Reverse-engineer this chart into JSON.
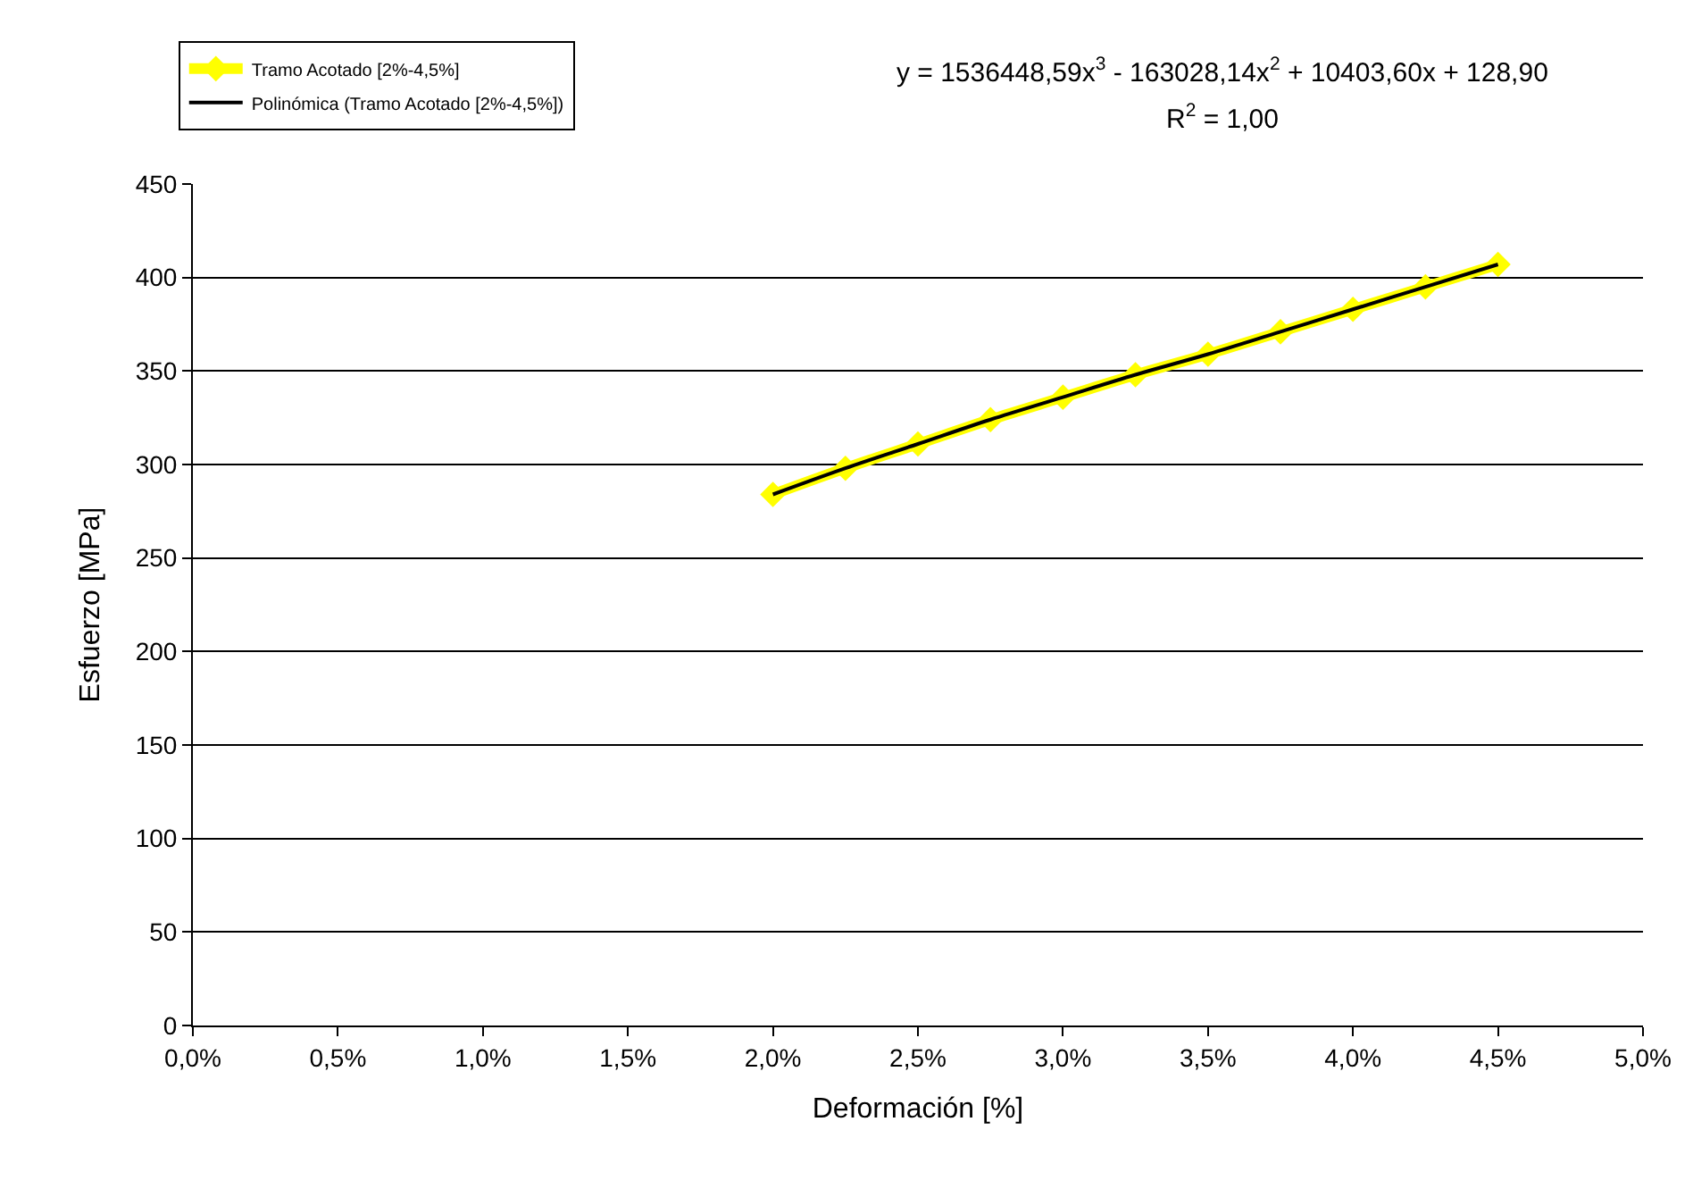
{
  "chart_data": {
    "type": "line",
    "xlabel": "Deformación [%]",
    "ylabel": "Esfuerzo [MPa]",
    "xlim": [
      0,
      0.05
    ],
    "xticks": [
      {
        "value": 0,
        "label": "0,0%"
      },
      {
        "value": 0.005,
        "label": "0,5%"
      },
      {
        "value": 0.01,
        "label": "1,0%"
      },
      {
        "value": 0.015,
        "label": "1,5%"
      },
      {
        "value": 0.02,
        "label": "2,0%"
      },
      {
        "value": 0.025,
        "label": "2,5%"
      },
      {
        "value": 0.03,
        "label": "3,0%"
      },
      {
        "value": 0.035,
        "label": "3,5%"
      },
      {
        "value": 0.04,
        "label": "4,0%"
      },
      {
        "value": 0.045,
        "label": "4,5%"
      },
      {
        "value": 0.05,
        "label": "5,0%"
      }
    ],
    "ylim": [
      0,
      450
    ],
    "yticks": [
      0,
      50,
      100,
      150,
      200,
      250,
      300,
      350,
      400,
      450
    ],
    "grid": "y",
    "legend": "top left",
    "series": [
      {
        "name": "Tramo Acotado [2%-4,5%]",
        "color": "#ffff00",
        "marker": "diamond",
        "x": [
          0.02,
          0.0225,
          0.025,
          0.0275,
          0.03,
          0.0325,
          0.035,
          0.0375,
          0.04,
          0.0425,
          0.045
        ],
        "values": [
          284,
          298,
          311,
          324,
          336,
          348,
          359,
          371,
          383,
          395,
          407
        ]
      },
      {
        "name": "Polinómica (Tramo Acotado [2%-4,5%])",
        "color": "#000000",
        "marker": "none",
        "x": [
          0.02,
          0.0225,
          0.025,
          0.0275,
          0.03,
          0.0325,
          0.035,
          0.0375,
          0.04,
          0.0425,
          0.045
        ],
        "values": [
          284,
          298,
          311,
          324,
          336,
          348,
          359,
          371,
          383,
          395,
          407
        ]
      }
    ],
    "annotations": [
      "y = 1536448,59x$^{3}$ - 163028,14x$^{2}$ + 10403,60x + 128,90",
      "R$^{2}$ = 1,00"
    ]
  }
}
